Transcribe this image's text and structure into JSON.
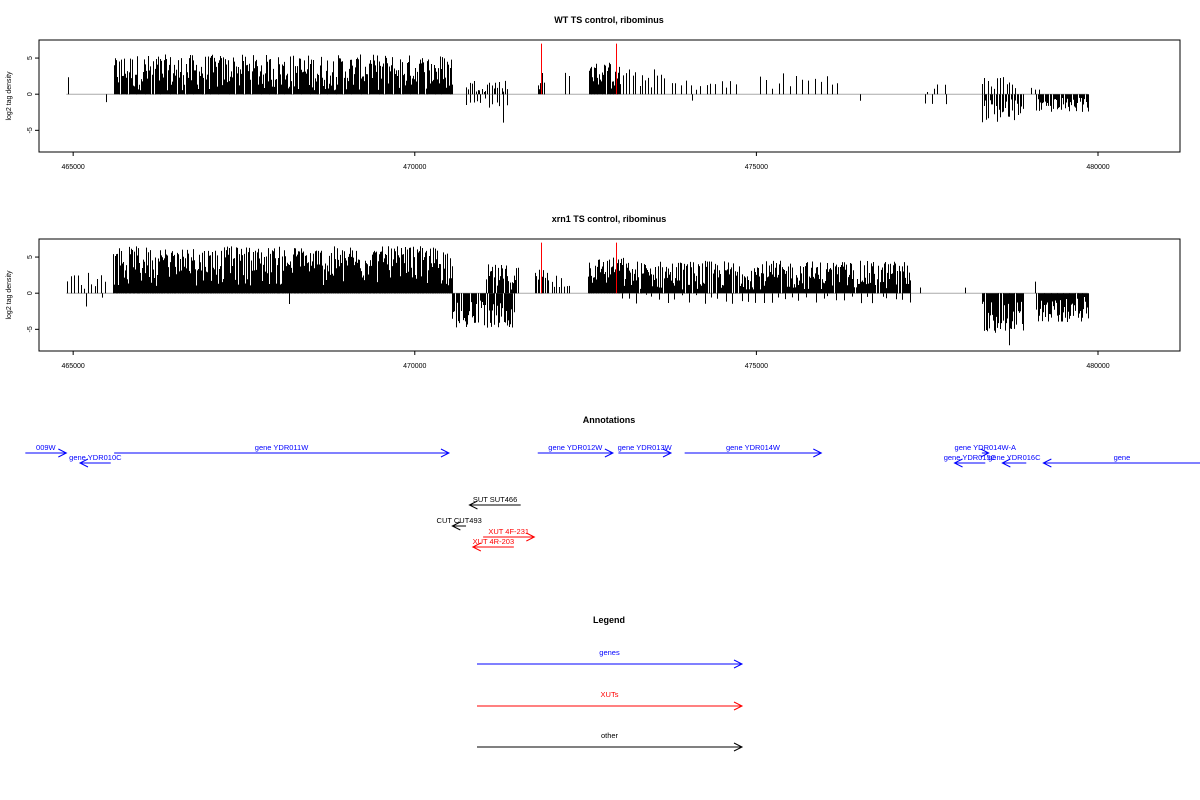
{
  "chart_data": [
    {
      "type": "bar",
      "title": "WT TS control, ribominus",
      "ylabel": "log2 tag density",
      "xlim": [
        464500,
        481200
      ],
      "ylim": [
        -8,
        7.5
      ],
      "x_ticks": [
        465000,
        470000,
        475000,
        480000
      ],
      "x_tick_labels": [
        "465000",
        "470000",
        "475000",
        "480000"
      ],
      "y_ticks": [
        -5,
        0,
        5
      ],
      "y_tick_labels": [
        "-5",
        "0",
        "5"
      ],
      "baseline": {
        "from": 464900,
        "to": 479850,
        "color": "#aaaaaa"
      },
      "highlight_color": "#ff0000",
      "highlights": [
        {
          "x": 471850,
          "y": 7.0
        },
        {
          "x": 472950,
          "y": 7.0
        }
      ],
      "regions": [
        {
          "from": 464920,
          "to": 464950,
          "n": 1,
          "ymin": 2.0,
          "ymax": 3.0,
          "dir": 1
        },
        {
          "from": 465480,
          "to": 465520,
          "n": 1,
          "ymin": 1.0,
          "ymax": 1.1,
          "dir": -1
        },
        {
          "from": 465600,
          "to": 470550,
          "n": 380,
          "ymin": 0.5,
          "ymax": 5.5,
          "dir": 1
        },
        {
          "from": 470750,
          "to": 471350,
          "n": 22,
          "ymin": 0.3,
          "ymax": 2.0,
          "dir": 1
        },
        {
          "from": 470750,
          "to": 471350,
          "n": 12,
          "ymin": 0.5,
          "ymax": 2.0,
          "dir": -1
        },
        {
          "from": 471300,
          "to": 471340,
          "n": 1,
          "ymin": 3.8,
          "ymax": 4.0,
          "dir": -1
        },
        {
          "from": 471800,
          "to": 471900,
          "n": 6,
          "ymin": 0.5,
          "ymax": 3.5,
          "dir": 1
        },
        {
          "from": 472200,
          "to": 472250,
          "n": 2,
          "ymin": 1.5,
          "ymax": 3.0,
          "dir": 1
        },
        {
          "from": 472550,
          "to": 473000,
          "n": 40,
          "ymin": 0.5,
          "ymax": 4.5,
          "dir": 1
        },
        {
          "from": 473050,
          "to": 473650,
          "n": 14,
          "ymin": 0.8,
          "ymax": 3.5,
          "dir": 1
        },
        {
          "from": 473750,
          "to": 474700,
          "n": 14,
          "ymin": 0.5,
          "ymax": 2.0,
          "dir": 1
        },
        {
          "from": 474050,
          "to": 474080,
          "n": 1,
          "ymin": 0.8,
          "ymax": 1.0,
          "dir": -1
        },
        {
          "from": 475050,
          "to": 476200,
          "n": 14,
          "ymin": 0.5,
          "ymax": 3.0,
          "dir": 1
        },
        {
          "from": 476500,
          "to": 476540,
          "n": 1,
          "ymin": 0.8,
          "ymax": 1.0,
          "dir": -1
        },
        {
          "from": 477500,
          "to": 477750,
          "n": 4,
          "ymin": 0.3,
          "ymax": 1.5,
          "dir": 1
        },
        {
          "from": 477450,
          "to": 477750,
          "n": 3,
          "ymin": 1.0,
          "ymax": 1.6,
          "dir": -1
        },
        {
          "from": 478300,
          "to": 478800,
          "n": 12,
          "ymin": 0.5,
          "ymax": 2.5,
          "dir": 1
        },
        {
          "from": 478300,
          "to": 478900,
          "n": 28,
          "ymin": 0.5,
          "ymax": 4.0,
          "dir": -1
        },
        {
          "from": 479000,
          "to": 479150,
          "n": 3,
          "ymin": 0.3,
          "ymax": 1.0,
          "dir": 1
        },
        {
          "from": 479100,
          "to": 479850,
          "n": 45,
          "ymin": 0.5,
          "ymax": 2.5,
          "dir": -1
        }
      ]
    },
    {
      "type": "bar",
      "title": "xrn1 TS control, ribominus",
      "ylabel": "log2 tag density",
      "xlim": [
        464500,
        481200
      ],
      "ylim": [
        -8,
        7.5
      ],
      "x_ticks": [
        465000,
        470000,
        475000,
        480000
      ],
      "x_tick_labels": [
        "465000",
        "470000",
        "475000",
        "480000"
      ],
      "y_ticks": [
        -5,
        0,
        5
      ],
      "y_tick_labels": [
        "-5",
        "0",
        "5"
      ],
      "baseline": {
        "from": 464900,
        "to": 479850,
        "color": "#aaaaaa"
      },
      "highlight_color": "#ff0000",
      "highlights": [
        {
          "x": 471850,
          "y": 7.0
        },
        {
          "x": 472950,
          "y": 7.0
        }
      ],
      "regions": [
        {
          "from": 464920,
          "to": 465450,
          "n": 12,
          "ymin": 0.5,
          "ymax": 3.0,
          "dir": 1
        },
        {
          "from": 465180,
          "to": 465220,
          "n": 1,
          "ymin": 1.8,
          "ymax": 2.0,
          "dir": -1
        },
        {
          "from": 465430,
          "to": 465460,
          "n": 1,
          "ymin": 0.6,
          "ymax": 0.8,
          "dir": -1
        },
        {
          "from": 465580,
          "to": 470550,
          "n": 520,
          "ymin": 1.0,
          "ymax": 6.5,
          "dir": 1
        },
        {
          "from": 468150,
          "to": 468190,
          "n": 1,
          "ymin": 1.4,
          "ymax": 1.5,
          "dir": -1
        },
        {
          "from": 470550,
          "to": 471450,
          "n": 55,
          "ymin": 1.0,
          "ymax": 4.8,
          "dir": -1
        },
        {
          "from": 471050,
          "to": 471500,
          "n": 28,
          "ymin": 0.5,
          "ymax": 4.0,
          "dir": 1
        },
        {
          "from": 471750,
          "to": 471950,
          "n": 10,
          "ymin": 1.0,
          "ymax": 3.5,
          "dir": 1
        },
        {
          "from": 472000,
          "to": 472250,
          "n": 8,
          "ymin": 0.5,
          "ymax": 3.0,
          "dir": 1
        },
        {
          "from": 472530,
          "to": 473050,
          "n": 50,
          "ymin": 1.0,
          "ymax": 5.0,
          "dir": 1
        },
        {
          "from": 473050,
          "to": 477250,
          "n": 300,
          "ymin": 0.5,
          "ymax": 4.5,
          "dir": 1
        },
        {
          "from": 473050,
          "to": 477250,
          "n": 40,
          "ymin": 0.2,
          "ymax": 1.5,
          "dir": -1
        },
        {
          "from": 477400,
          "to": 477450,
          "n": 1,
          "ymin": 0.6,
          "ymax": 0.8,
          "dir": 1
        },
        {
          "from": 478050,
          "to": 478080,
          "n": 1,
          "ymin": 0.6,
          "ymax": 0.8,
          "dir": 1
        },
        {
          "from": 478300,
          "to": 478900,
          "n": 45,
          "ymin": 1.0,
          "ymax": 5.5,
          "dir": -1
        },
        {
          "from": 478700,
          "to": 478730,
          "n": 1,
          "ymin": 7.2,
          "ymax": 7.4,
          "dir": -1
        },
        {
          "from": 479100,
          "to": 479850,
          "n": 60,
          "ymin": 0.5,
          "ymax": 4.0,
          "dir": -1
        },
        {
          "from": 479080,
          "to": 479110,
          "n": 1,
          "ymin": 1.5,
          "ymax": 1.7,
          "dir": 1
        }
      ]
    }
  ],
  "annotations": {
    "title": "Annotations",
    "xlim": [
      464500,
      481200
    ],
    "items": [
      {
        "label": "009W",
        "from": 464300,
        "to": 464900,
        "dir": 1,
        "row": 0,
        "color": "#0000ff"
      },
      {
        "label": "gene YDR010C",
        "from": 465100,
        "to": 465550,
        "dir": -1,
        "row": 1,
        "color": "#0000ff"
      },
      {
        "label": "gene YDR011W",
        "from": 465600,
        "to": 470500,
        "dir": 1,
        "row": 0,
        "color": "#0000ff"
      },
      {
        "label": "gene YDR012W",
        "from": 471800,
        "to": 472900,
        "dir": 1,
        "row": 0,
        "color": "#0000ff"
      },
      {
        "label": "gene YDR013W",
        "from": 472980,
        "to": 473750,
        "dir": 1,
        "row": 0,
        "color": "#0000ff"
      },
      {
        "label": "gene YDR014W",
        "from": 473950,
        "to": 475950,
        "dir": 1,
        "row": 0,
        "color": "#0000ff"
      },
      {
        "label": "gene YDR014W-A",
        "from": 478300,
        "to": 478400,
        "dir": 1,
        "row": 0,
        "color": "#0000ff"
      },
      {
        "label": "gene YDR015C",
        "from": 477900,
        "to": 478350,
        "dir": -1,
        "row": 1,
        "color": "#0000ff"
      },
      {
        "label": "gene YDR016C",
        "from": 478600,
        "to": 478950,
        "dir": -1,
        "row": 1,
        "color": "#0000ff"
      },
      {
        "label": "gene",
        "from": 479200,
        "to": 481500,
        "dir": -1,
        "row": 1,
        "color": "#0000ff"
      },
      {
        "label": "SUT SUT466",
        "from": 470800,
        "to": 471550,
        "dir": -1,
        "row": 5,
        "color": "#000000"
      },
      {
        "label": "CUT CUT493",
        "from": 470550,
        "to": 470750,
        "dir": -1,
        "row": 7,
        "color": "#000000"
      },
      {
        "label": "XUT 4F-231",
        "from": 471000,
        "to": 471750,
        "dir": 1,
        "row": 8,
        "color": "#ff0000"
      },
      {
        "label": "XUT 4R-203",
        "from": 470850,
        "to": 471450,
        "dir": -1,
        "row": 9,
        "color": "#ff0000"
      }
    ]
  },
  "legend": {
    "title": "Legend",
    "entries": [
      {
        "label": "genes",
        "color": "#0000ff"
      },
      {
        "label": "XUTs",
        "color": "#ff0000"
      },
      {
        "label": "other",
        "color": "#000000"
      }
    ]
  }
}
